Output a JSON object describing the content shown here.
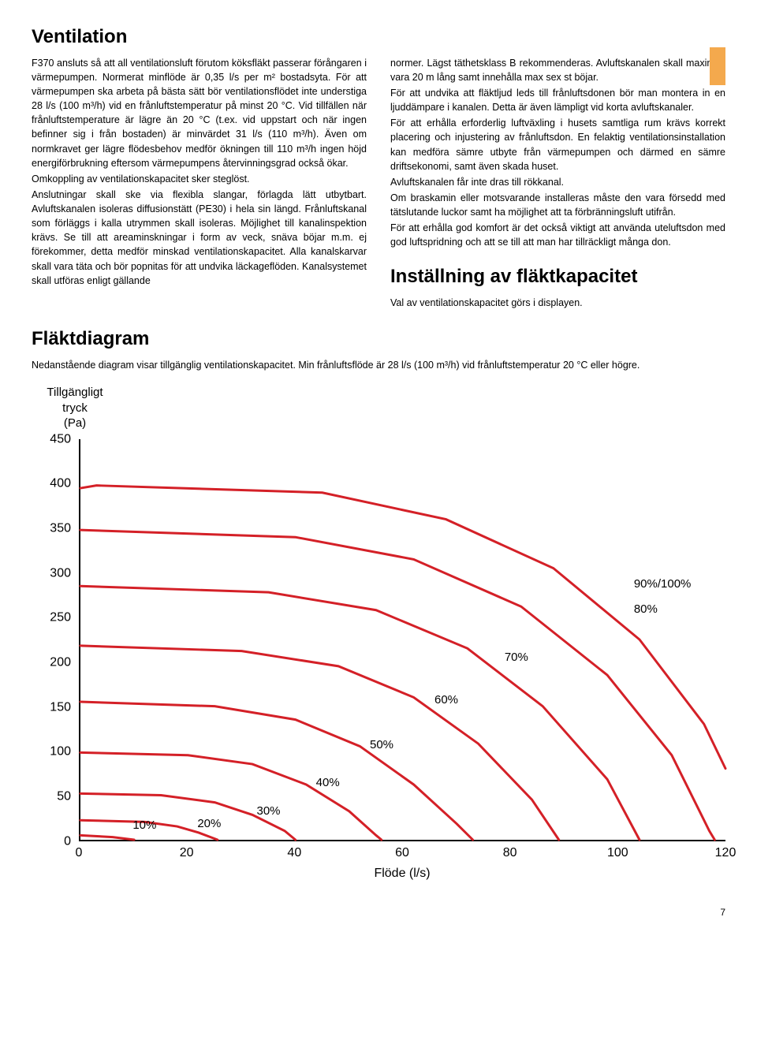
{
  "headings": {
    "ventilation": "Ventilation",
    "installning": "Inställning av fläktkapacitet",
    "flaktdiagram": "Fläktdiagram"
  },
  "left_col": {
    "p1": "F370 ansluts så att all ventilationsluft förutom köksfläkt passerar förångaren i värmepumpen. Normerat minflöde är 0,35 l/s per m² bostadsyta. För att värmepumpen ska arbeta på bästa sätt bör ventilationsflödet inte understiga 28 l/s (100 m³/h) vid en frånluftstemperatur på minst 20 °C. Vid tillfällen när frånluftstemperature är lägre än 20 °C (t.ex. vid uppstart och när ingen befinner sig i från bostaden) är minvärdet 31 l/s (110 m³/h). Även om normkravet ger lägre flödesbehov medför ökningen till 110 m³/h ingen höjd energiförbrukning eftersom värmepumpens återvinningsgrad också ökar.",
    "p2": "Omkoppling av ventilationskapacitet sker steglöst.",
    "p3": "Anslutningar skall ske via flexibla slangar, förlagda lätt utbytbart. Avluftskanalen isoleras diffusionstätt (PE30) i hela sin längd. Frånluftskanal som förläggs i kalla utrymmen skall isoleras. Möjlighet till kanalinspektion krävs. Se till att areaminskningar i form av veck, snäva böjar m.m. ej förekommer, detta medför minskad ventilationskapacitet. Alla kanalskarvar skall vara täta och bör popnitas för att undvika läckageflöden. Kanalsystemet skall utföras enligt gällande"
  },
  "right_col": {
    "p1": "normer. Lägst täthetsklass B rekommenderas. Avluftskanalen skall maximalt vara 20 m lång samt innehålla max sex st böjar.",
    "p2": "För att undvika att fläktljud leds till frånluftsdonen bör man montera in en ljuddämpare i kanalen. Detta är även lämpligt vid korta avluftskanaler.",
    "p3": "För att erhålla erforderlig luftväxling i husets samtliga rum krävs korrekt placering och injustering av frånluftsdon. En felaktig ventilationsinstallation kan medföra sämre utbyte från värmepumpen och därmed en sämre driftsekonomi, samt även skada huset.",
    "p4": "Avluftskanalen får inte dras till rökkanal.",
    "p5": "Om braskamin eller motsvarande installeras måste den vara försedd med tätslutande luckor samt ha möjlighet att ta förbränningsluft utifrån.",
    "p6": "För att erhålla god komfort är det också viktigt att använda uteluftsdon med god luftspridning och att se till att man har tillräckligt många don.",
    "p7": "Val av ventilationskapacitet görs i displayen."
  },
  "chart": {
    "intro": "Nedanstående diagram visar tillgänglig ventilationskapacitet. Min frånluftsflöde är 28 l/s (100 m³/h) vid frånluftstemperatur 20 °C eller högre.",
    "y_axis_title": "Tillgängligt\ntryck\n(Pa)",
    "x_axis_title": "Flöde (l/s)",
    "xlim": [
      0,
      120
    ],
    "ylim": [
      0,
      450
    ],
    "xticks": [
      0,
      20,
      40,
      60,
      80,
      100,
      120
    ],
    "yticks": [
      0,
      50,
      100,
      150,
      200,
      250,
      300,
      350,
      400,
      450
    ],
    "line_color": "#d42027",
    "line_width": 3,
    "axis_color": "#000000",
    "background_color": "#ffffff",
    "curves": [
      {
        "label": "10%",
        "pts": [
          [
            0,
            5
          ],
          [
            6,
            3
          ],
          [
            10,
            0
          ]
        ]
      },
      {
        "label": "20%",
        "pts": [
          [
            0,
            22
          ],
          [
            12,
            20
          ],
          [
            18,
            15
          ],
          [
            22,
            8
          ],
          [
            25.5,
            0
          ]
        ]
      },
      {
        "label": "30%",
        "pts": [
          [
            0,
            52
          ],
          [
            15,
            50
          ],
          [
            25,
            42
          ],
          [
            32,
            28
          ],
          [
            38,
            10
          ],
          [
            40,
            0
          ]
        ]
      },
      {
        "label": "40%",
        "pts": [
          [
            0,
            98
          ],
          [
            20,
            95
          ],
          [
            32,
            85
          ],
          [
            42,
            62
          ],
          [
            50,
            32
          ],
          [
            55,
            5
          ],
          [
            56,
            0
          ]
        ]
      },
      {
        "label": "50%",
        "pts": [
          [
            0,
            155
          ],
          [
            25,
            150
          ],
          [
            40,
            135
          ],
          [
            52,
            105
          ],
          [
            62,
            62
          ],
          [
            70,
            18
          ],
          [
            73,
            0
          ]
        ]
      },
      {
        "label": "60%",
        "pts": [
          [
            0,
            218
          ],
          [
            30,
            212
          ],
          [
            48,
            195
          ],
          [
            62,
            160
          ],
          [
            74,
            108
          ],
          [
            84,
            45
          ],
          [
            89,
            0
          ]
        ]
      },
      {
        "label": "70%",
        "pts": [
          [
            0,
            285
          ],
          [
            35,
            278
          ],
          [
            55,
            258
          ],
          [
            72,
            215
          ],
          [
            86,
            150
          ],
          [
            98,
            68
          ],
          [
            104,
            0
          ]
        ]
      },
      {
        "label": "80%",
        "pts": [
          [
            0,
            348
          ],
          [
            40,
            340
          ],
          [
            62,
            315
          ],
          [
            82,
            262
          ],
          [
            98,
            185
          ],
          [
            110,
            95
          ],
          [
            117,
            10
          ],
          [
            118,
            0
          ]
        ]
      },
      {
        "label": "90%/100%",
        "pts": [
          [
            0,
            395
          ],
          [
            3,
            398
          ],
          [
            45,
            390
          ],
          [
            68,
            360
          ],
          [
            88,
            305
          ],
          [
            104,
            225
          ],
          [
            116,
            130
          ],
          [
            120,
            80
          ]
        ]
      }
    ],
    "curve_labels": [
      {
        "text": "10%",
        "x": 10,
        "y": 20
      },
      {
        "text": "20%",
        "x": 22,
        "y": 22
      },
      {
        "text": "30%",
        "x": 33,
        "y": 36
      },
      {
        "text": "40%",
        "x": 44,
        "y": 68
      },
      {
        "text": "50%",
        "x": 54,
        "y": 110
      },
      {
        "text": "60%",
        "x": 66,
        "y": 160
      },
      {
        "text": "70%",
        "x": 79,
        "y": 208
      },
      {
        "text": "80%",
        "x": 103,
        "y": 262
      },
      {
        "text": "90%/100%",
        "x": 103,
        "y": 290
      }
    ]
  },
  "page_number": "7",
  "tab_color": "#f4a94d"
}
